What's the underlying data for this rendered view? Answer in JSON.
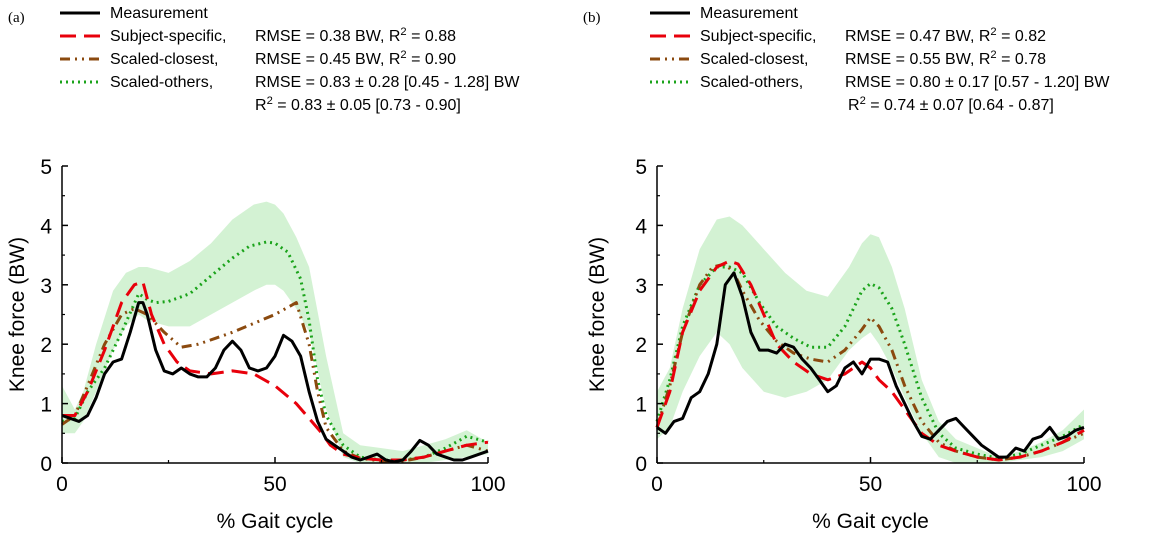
{
  "chart_data": [
    {
      "panel": "(a)",
      "type": "line",
      "xlabel": "% Gait cycle",
      "ylabel": "Knee force (BW)",
      "xlim": [
        0,
        100
      ],
      "ylim": [
        0,
        5
      ],
      "xticks": [
        "0",
        "50",
        "100"
      ],
      "yticks": [
        "0",
        "1",
        "2",
        "3",
        "4",
        "5"
      ],
      "grid": false,
      "legend_position": "top",
      "legend": [
        {
          "label": "Measurement",
          "stats": "",
          "stats2": ""
        },
        {
          "label": "Subject-specific,",
          "stats": "RMSE = 0.38 BW, R² = 0.88",
          "stats2": ""
        },
        {
          "label": "Scaled-closest,",
          "stats": "RMSE = 0.45 BW, R² = 0.90",
          "stats2": ""
        },
        {
          "label": "Scaled-others,",
          "stats": "RMSE = 0.83 ± 0.28 [0.45 - 1.28] BW",
          "stats2": "R² = 0.83 ± 0.05  [0.73 - 0.90]"
        }
      ],
      "band": {
        "x": [
          0,
          3,
          5,
          8,
          12,
          15,
          18,
          20,
          25,
          30,
          35,
          40,
          45,
          48,
          50,
          52,
          55,
          58,
          62,
          66,
          70,
          75,
          80,
          85,
          90,
          95,
          100
        ],
        "upper": [
          1.3,
          0.9,
          1.2,
          2.0,
          2.9,
          3.2,
          3.3,
          3.3,
          3.2,
          3.4,
          3.7,
          4.1,
          4.35,
          4.4,
          4.35,
          4.2,
          3.8,
          3.3,
          1.8,
          0.5,
          0.3,
          0.25,
          0.2,
          0.3,
          0.4,
          0.55,
          0.35
        ],
        "lower": [
          0.5,
          0.5,
          0.7,
          1.2,
          1.9,
          2.3,
          2.5,
          2.4,
          2.3,
          2.3,
          2.5,
          2.7,
          2.9,
          3.0,
          3.0,
          2.9,
          2.6,
          2.2,
          0.9,
          0.1,
          0.0,
          0.0,
          0.0,
          0.0,
          0.05,
          0.1,
          0.15
        ]
      },
      "series": [
        {
          "name": "Measurement",
          "color": "#000000",
          "x": [
            0,
            2,
            4,
            6,
            8,
            10,
            12,
            14,
            16,
            18,
            19,
            20,
            22,
            24,
            26,
            28,
            30,
            32,
            34,
            36,
            38,
            40,
            42,
            44,
            46,
            48,
            50,
            52,
            54,
            56,
            58,
            60,
            62,
            64,
            66,
            68,
            70,
            72,
            74,
            76,
            78,
            80,
            82,
            84,
            86,
            88,
            90,
            92,
            94,
            96,
            98,
            100
          ],
          "y": [
            0.8,
            0.75,
            0.7,
            0.8,
            1.1,
            1.5,
            1.7,
            1.75,
            2.2,
            2.7,
            2.7,
            2.5,
            1.9,
            1.55,
            1.5,
            1.6,
            1.5,
            1.45,
            1.45,
            1.6,
            1.9,
            2.05,
            1.9,
            1.6,
            1.55,
            1.6,
            1.8,
            2.15,
            2.05,
            1.8,
            1.2,
            0.7,
            0.4,
            0.3,
            0.2,
            0.1,
            0.05,
            0.1,
            0.15,
            0.05,
            0.02,
            0.05,
            0.2,
            0.38,
            0.3,
            0.15,
            0.1,
            0.05,
            0.05,
            0.1,
            0.15,
            0.2
          ]
        },
        {
          "name": "Subject-specific",
          "color": "#e8000b",
          "x": [
            0,
            3,
            6,
            10,
            14,
            17,
            19,
            21,
            24,
            27,
            30,
            35,
            40,
            45,
            50,
            55,
            58,
            61,
            63,
            66,
            70,
            75,
            80,
            85,
            90,
            95,
            100
          ],
          "y": [
            0.8,
            0.8,
            1.2,
            1.9,
            2.7,
            3.0,
            3.05,
            2.5,
            2.0,
            1.7,
            1.55,
            1.5,
            1.55,
            1.5,
            1.3,
            1.0,
            0.75,
            0.5,
            0.3,
            0.15,
            0.08,
            0.05,
            0.05,
            0.1,
            0.2,
            0.3,
            0.35
          ]
        },
        {
          "name": "Scaled-closest",
          "color": "#8b4a0f",
          "x": [
            0,
            3,
            6,
            10,
            14,
            17,
            20,
            24,
            28,
            32,
            36,
            40,
            45,
            50,
            55,
            58,
            60,
            62,
            66,
            70,
            75,
            80,
            85,
            90,
            95,
            100
          ],
          "y": [
            0.65,
            0.8,
            1.3,
            2.0,
            2.5,
            2.6,
            2.5,
            2.2,
            1.95,
            2.0,
            2.1,
            2.2,
            2.35,
            2.5,
            2.7,
            2.0,
            1.2,
            0.6,
            0.2,
            0.08,
            0.03,
            0.03,
            0.1,
            0.2,
            0.3,
            0.2
          ]
        },
        {
          "name": "Scaled-others",
          "color": "#1aa31a",
          "x": [
            0,
            3,
            6,
            10,
            14,
            18,
            20,
            22,
            25,
            30,
            35,
            40,
            44,
            48,
            50,
            53,
            56,
            58,
            60,
            62,
            66,
            70,
            75,
            80,
            85,
            90,
            95,
            100
          ],
          "y": [
            0.7,
            0.75,
            1.2,
            1.6,
            2.2,
            2.85,
            2.75,
            2.7,
            2.72,
            2.85,
            3.15,
            3.45,
            3.65,
            3.72,
            3.7,
            3.55,
            3.1,
            2.4,
            1.4,
            0.8,
            0.3,
            0.1,
            0.05,
            0.05,
            0.1,
            0.25,
            0.45,
            0.35
          ]
        }
      ]
    },
    {
      "panel": "(b)",
      "type": "line",
      "xlabel": "% Gait cycle",
      "ylabel": "Knee force (BW)",
      "xlim": [
        0,
        100
      ],
      "ylim": [
        0,
        5
      ],
      "xticks": [
        "0",
        "50",
        "100"
      ],
      "yticks": [
        "0",
        "1",
        "2",
        "3",
        "4",
        "5"
      ],
      "grid": false,
      "legend_position": "top",
      "legend": [
        {
          "label": "Measurement",
          "stats": "",
          "stats2": ""
        },
        {
          "label": "Subject-specific,",
          "stats": "RMSE = 0.47 BW, R² = 0.82",
          "stats2": ""
        },
        {
          "label": "Scaled-closest,",
          "stats": "RMSE = 0.55 BW, R² = 0.78",
          "stats2": ""
        },
        {
          "label": "Scaled-others,",
          "stats": "RMSE = 0.80 ± 0.17 [0.57 - 1.20] BW",
          "stats2": "R² = 0.74 ± 0.07 [0.64 - 0.87]"
        }
      ],
      "band": {
        "x": [
          0,
          3,
          6,
          10,
          14,
          17,
          20,
          25,
          30,
          35,
          40,
          45,
          48,
          50,
          52,
          55,
          58,
          62,
          66,
          70,
          75,
          80,
          85,
          90,
          95,
          100
        ],
        "upper": [
          1.2,
          1.6,
          2.6,
          3.6,
          4.1,
          4.15,
          4.0,
          3.6,
          3.2,
          2.9,
          2.8,
          3.3,
          3.7,
          3.85,
          3.8,
          3.3,
          2.6,
          1.4,
          0.7,
          0.4,
          0.25,
          0.1,
          0.2,
          0.35,
          0.55,
          0.9
        ],
        "lower": [
          0.4,
          0.6,
          1.2,
          1.8,
          2.2,
          2.0,
          1.6,
          1.2,
          1.1,
          1.2,
          1.4,
          1.9,
          2.1,
          2.2,
          2.0,
          1.6,
          1.1,
          0.5,
          0.1,
          0.0,
          0.0,
          0.0,
          0.05,
          0.1,
          0.2,
          0.4
        ]
      },
      "series": [
        {
          "name": "Measurement",
          "color": "#000000",
          "x": [
            0,
            2,
            4,
            6,
            8,
            10,
            12,
            14,
            16,
            18,
            20,
            22,
            24,
            26,
            28,
            30,
            32,
            34,
            36,
            38,
            40,
            42,
            44,
            46,
            48,
            50,
            52,
            54,
            56,
            58,
            60,
            62,
            64,
            66,
            68,
            70,
            72,
            74,
            76,
            78,
            80,
            82,
            84,
            86,
            88,
            90,
            92,
            94,
            96,
            98,
            100
          ],
          "y": [
            0.6,
            0.5,
            0.7,
            0.75,
            1.1,
            1.2,
            1.5,
            2.0,
            3.0,
            3.2,
            2.8,
            2.2,
            1.9,
            1.9,
            1.85,
            2.0,
            1.95,
            1.75,
            1.6,
            1.4,
            1.2,
            1.3,
            1.6,
            1.7,
            1.5,
            1.75,
            1.75,
            1.7,
            1.3,
            1.0,
            0.7,
            0.45,
            0.4,
            0.55,
            0.7,
            0.75,
            0.6,
            0.45,
            0.3,
            0.2,
            0.1,
            0.1,
            0.25,
            0.2,
            0.4,
            0.45,
            0.6,
            0.4,
            0.45,
            0.55,
            0.6
          ]
        },
        {
          "name": "Subject-specific",
          "color": "#e8000b",
          "x": [
            0,
            3,
            6,
            10,
            14,
            17,
            19,
            22,
            25,
            28,
            32,
            36,
            40,
            44,
            48,
            50,
            52,
            55,
            58,
            62,
            66,
            70,
            75,
            80,
            85,
            90,
            95,
            100
          ],
          "y": [
            0.6,
            1.2,
            2.2,
            2.9,
            3.3,
            3.4,
            3.35,
            3.0,
            2.5,
            2.0,
            1.7,
            1.5,
            1.4,
            1.5,
            1.7,
            1.6,
            1.4,
            1.2,
            0.9,
            0.5,
            0.3,
            0.2,
            0.1,
            0.05,
            0.1,
            0.2,
            0.35,
            0.55
          ]
        },
        {
          "name": "Scaled-closest",
          "color": "#8b4a0f",
          "x": [
            0,
            3,
            6,
            10,
            13,
            16,
            18,
            20,
            24,
            28,
            32,
            36,
            40,
            44,
            48,
            50,
            52,
            55,
            58,
            62,
            66,
            70,
            75,
            80,
            85,
            90,
            95,
            100
          ],
          "y": [
            0.6,
            1.3,
            2.2,
            3.0,
            3.3,
            3.35,
            3.2,
            2.9,
            2.4,
            2.05,
            1.85,
            1.75,
            1.7,
            1.9,
            2.25,
            2.45,
            2.3,
            1.9,
            1.3,
            0.7,
            0.35,
            0.2,
            0.1,
            0.05,
            0.1,
            0.2,
            0.35,
            0.5
          ]
        },
        {
          "name": "Scaled-others",
          "color": "#1aa31a",
          "x": [
            0,
            3,
            6,
            10,
            14,
            17,
            20,
            24,
            28,
            32,
            36,
            40,
            44,
            48,
            50,
            52,
            55,
            58,
            62,
            66,
            70,
            75,
            80,
            85,
            90,
            95,
            100
          ],
          "y": [
            0.7,
            1.4,
            2.3,
            3.0,
            3.3,
            3.3,
            3.2,
            2.7,
            2.3,
            2.1,
            1.95,
            1.95,
            2.3,
            2.9,
            3.02,
            2.95,
            2.6,
            2.0,
            1.1,
            0.5,
            0.25,
            0.15,
            0.08,
            0.15,
            0.3,
            0.45,
            0.65
          ]
        }
      ]
    }
  ]
}
